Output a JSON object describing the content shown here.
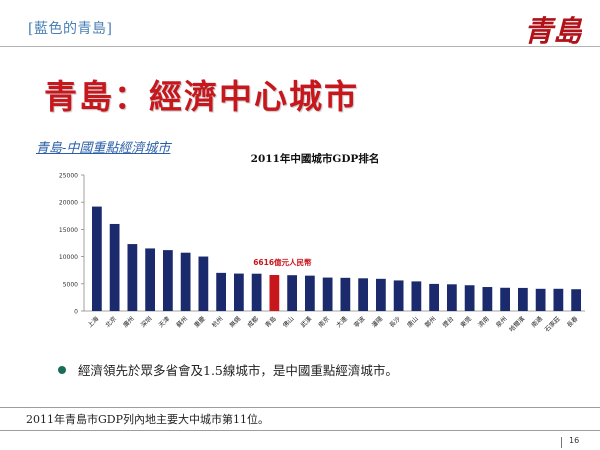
{
  "header": {
    "section_tag": "[藍色的青島]",
    "logo_text": "青島"
  },
  "title": "青島：經濟中心城市",
  "subtitle": "青島-中國重點經濟城市",
  "chart_data": {
    "type": "bar",
    "title": "2011年中國城市GDP排名",
    "categories": [
      "上海",
      "北京",
      "廣州",
      "深圳",
      "天津",
      "蘇州",
      "重慶",
      "杭州",
      "無錫",
      "成都",
      "青島",
      "佛山",
      "武漢",
      "南京",
      "大連",
      "寧波",
      "瀋陽",
      "長沙",
      "唐山",
      "鄭州",
      "煙台",
      "東莞",
      "濟南",
      "泉州",
      "哈爾濱",
      "南通",
      "石家莊",
      "長春"
    ],
    "values": [
      19196,
      16000,
      12303,
      11502,
      11191,
      10717,
      10011,
      7012,
      6880,
      6855,
      6616,
      6580,
      6500,
      6145,
      6100,
      6010,
      5915,
      5619,
      5442,
      4980,
      4906,
      4735,
      4406,
      4270,
      4243,
      4080,
      4083,
      4003
    ],
    "highlight_index": 10,
    "highlight_label": "6616億元人民幣",
    "yticks": [
      "0",
      "5000",
      "10000",
      "15000",
      "20000",
      "25000"
    ],
    "ylim": [
      0,
      25000
    ],
    "grid": false,
    "colors": {
      "bar": "#1a2a6c",
      "highlight": "#c8161d"
    }
  },
  "bullet": "經濟領先於眾多省會及1.5線城市，是中國重點經濟城市。",
  "footnote": "2011年青島市GDP列內地主要大中城市第11位。",
  "page_number": "16"
}
